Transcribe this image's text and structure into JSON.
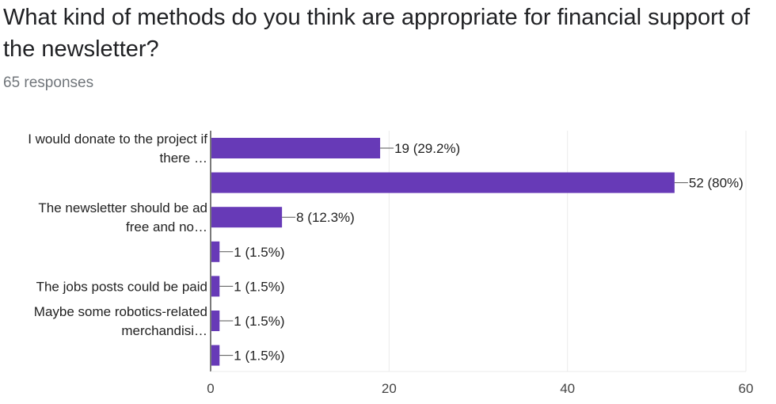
{
  "question": {
    "title": "What kind of methods do you think are appropriate for financial support of the newsletter?",
    "responses": "65 responses"
  },
  "colors": {
    "bar": "#673ab7",
    "grid": "#ebebeb",
    "axis": "#333333"
  },
  "chart_data": {
    "type": "bar",
    "orientation": "horizontal",
    "categories": [
      [
        "I would donate to the project if",
        "there …"
      ],
      [],
      [
        "The newsletter should be ad",
        "free and no…"
      ],
      [],
      [
        "The jobs posts could be paid"
      ],
      [
        "Maybe some robotics-related",
        "merchandisi…"
      ],
      []
    ],
    "values": [
      19,
      52,
      8,
      1,
      1,
      1,
      1
    ],
    "value_labels": [
      "19 (29.2%)",
      "52 (80%)",
      "8 (12.3%)",
      "1 (1.5%)",
      "1 (1.5%)",
      "1 (1.5%)",
      "1 (1.5%)"
    ],
    "xlim": [
      0,
      60
    ],
    "xticks": [
      0,
      20,
      40,
      60
    ],
    "grid": true,
    "title": "",
    "xlabel": "",
    "ylabel": ""
  }
}
